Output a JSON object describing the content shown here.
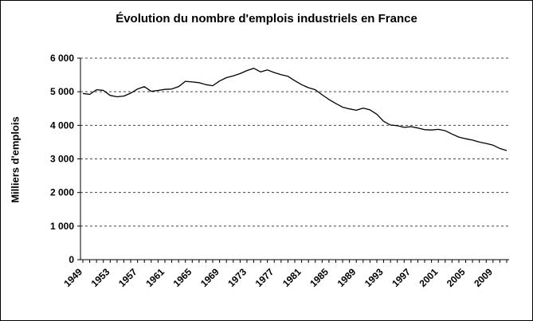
{
  "chart_data": {
    "type": "line",
    "title": "Évolution du nombre d'emplois industriels en France",
    "ylabel": "Milliers d'emplois",
    "xlabel": "",
    "ylim": [
      0,
      6000
    ],
    "grid": "dashed-horizontal",
    "legend": "none",
    "line_color": "#000000",
    "y_ticks": [
      {
        "value": 0,
        "label": "0"
      },
      {
        "value": 1000,
        "label": "1 000"
      },
      {
        "value": 2000,
        "label": "2 000"
      },
      {
        "value": 3000,
        "label": "3 000"
      },
      {
        "value": 4000,
        "label": "4 000"
      },
      {
        "value": 5000,
        "label": "5 000"
      },
      {
        "value": 6000,
        "label": "6 000"
      }
    ],
    "x_tick_labels": [
      "1949",
      "1953",
      "1957",
      "1961",
      "1965",
      "1969",
      "1973",
      "1977",
      "1981",
      "1985",
      "1989",
      "1993",
      "1997",
      "2001",
      "2005",
      "2009"
    ],
    "x": [
      1949,
      1950,
      1951,
      1952,
      1953,
      1954,
      1955,
      1956,
      1957,
      1958,
      1959,
      1960,
      1961,
      1962,
      1963,
      1964,
      1965,
      1966,
      1967,
      1968,
      1969,
      1970,
      1971,
      1972,
      1973,
      1974,
      1975,
      1976,
      1977,
      1978,
      1979,
      1980,
      1981,
      1982,
      1983,
      1984,
      1985,
      1986,
      1987,
      1988,
      1989,
      1990,
      1991,
      1992,
      1993,
      1994,
      1995,
      1996,
      1997,
      1998,
      1999,
      2000,
      2001,
      2002,
      2003,
      2004,
      2005,
      2006,
      2007,
      2008,
      2009,
      2010,
      2011
    ],
    "values": [
      4950,
      4920,
      5060,
      5040,
      4890,
      4850,
      4870,
      4960,
      5080,
      5150,
      5010,
      5040,
      5070,
      5080,
      5150,
      5310,
      5290,
      5270,
      5210,
      5180,
      5320,
      5420,
      5470,
      5540,
      5630,
      5700,
      5590,
      5650,
      5570,
      5510,
      5460,
      5330,
      5210,
      5120,
      5060,
      4910,
      4770,
      4650,
      4540,
      4490,
      4450,
      4510,
      4460,
      4330,
      4120,
      4010,
      3990,
      3940,
      3960,
      3920,
      3870,
      3860,
      3880,
      3840,
      3740,
      3650,
      3600,
      3560,
      3500,
      3460,
      3410,
      3310,
      3250
    ]
  }
}
